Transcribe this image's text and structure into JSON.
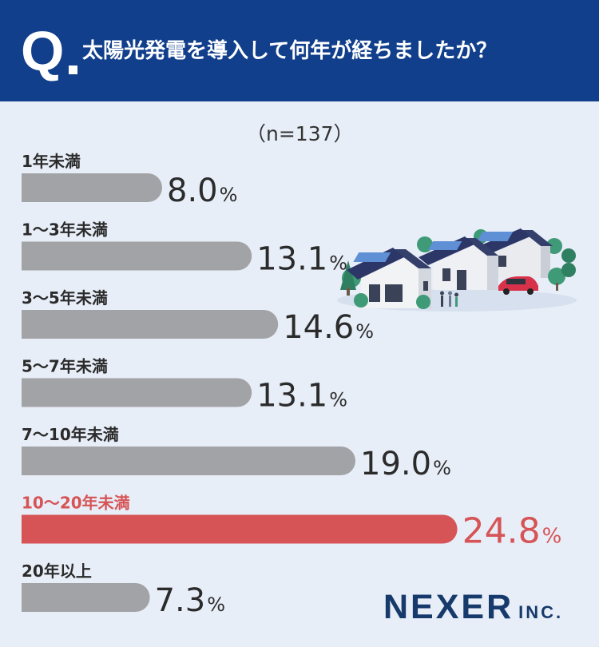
{
  "header": {
    "q_mark": "Q",
    "question": "太陽光発電を導入して何年が経ちましたか？"
  },
  "sample_note": "（n=137）",
  "colors": {
    "header_bg": "#113f8b",
    "bar_default": "#a2a3a6",
    "bar_highlight": "#d65456",
    "text_default": "#2b2b2b",
    "background": "#e8eef8"
  },
  "chart_data": {
    "type": "bar",
    "orientation": "horizontal",
    "categories": [
      "1年未満",
      "1〜3年未満",
      "3〜5年未満",
      "5〜7年未満",
      "7〜10年未満",
      "10〜20年未満",
      "20年以上"
    ],
    "values": [
      8.0,
      13.1,
      14.6,
      13.1,
      19.0,
      24.8,
      7.3
    ],
    "value_labels": [
      "8.0",
      "13.1",
      "14.6",
      "13.1",
      "19.0",
      "24.8",
      "7.3"
    ],
    "unit": "%",
    "highlight_index": 5
  },
  "logo": {
    "main": "NEXER",
    "suffix": "INC."
  }
}
